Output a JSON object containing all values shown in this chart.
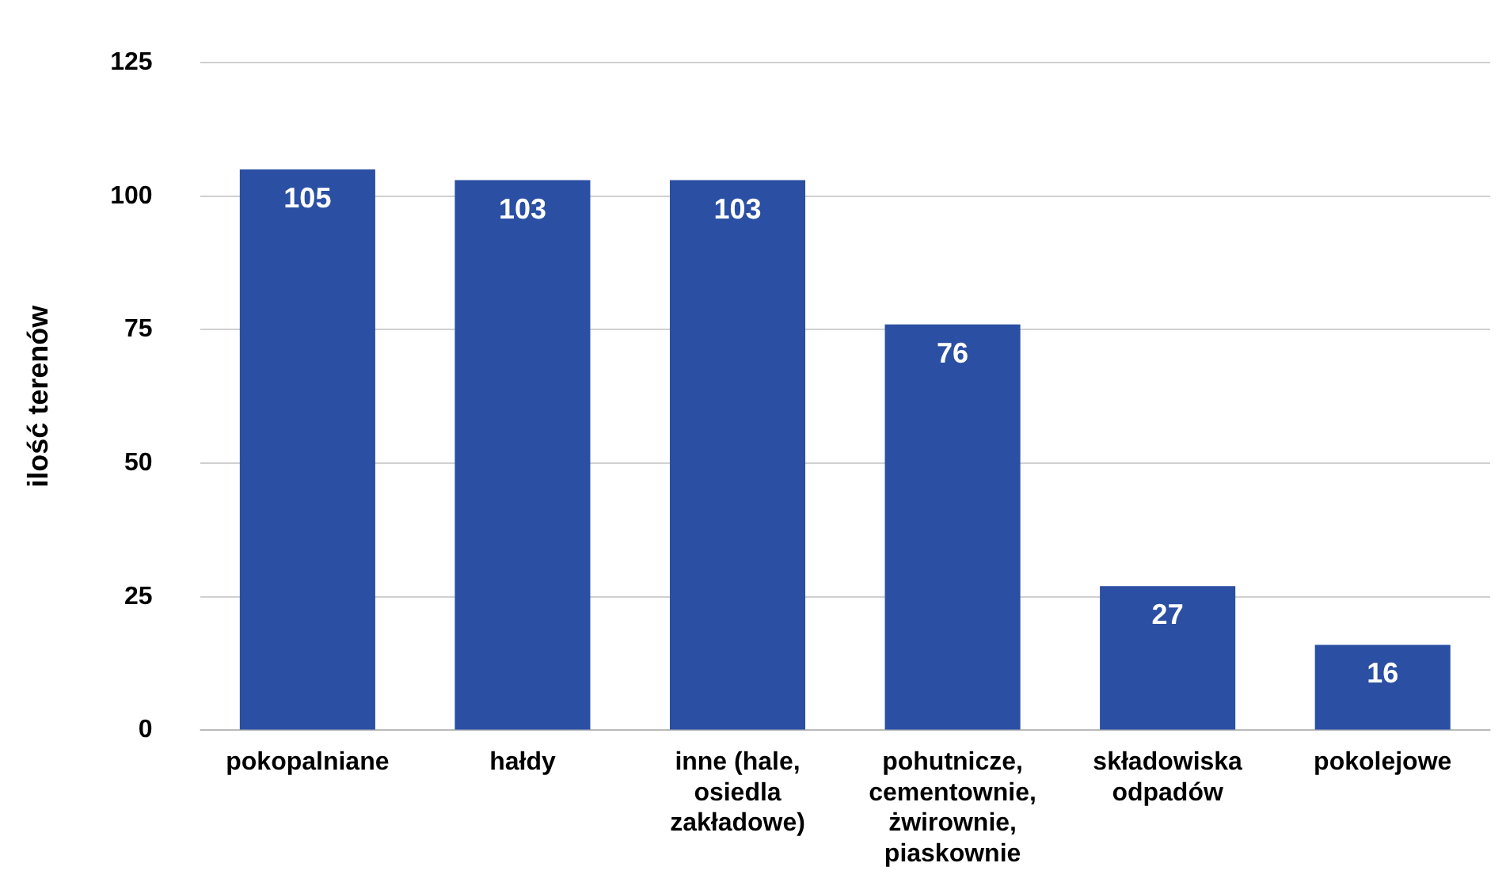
{
  "chart_data": {
    "type": "bar",
    "ylabel": "ilość terenów",
    "categories": [
      "pokopalniane",
      "hałdy",
      "inne (hale, osiedla zakładowe)",
      "pohutnicze, cementownie, żwirownie, piaskownie",
      "składowiska odpadów",
      "pokolejowe"
    ],
    "values": [
      105,
      103,
      103,
      76,
      27,
      16
    ],
    "color": "#2a4fa3",
    "ylim": [
      0,
      125
    ],
    "yticks": [
      0,
      25,
      50,
      75,
      100,
      125
    ],
    "grid": "y",
    "data_labels": true
  }
}
